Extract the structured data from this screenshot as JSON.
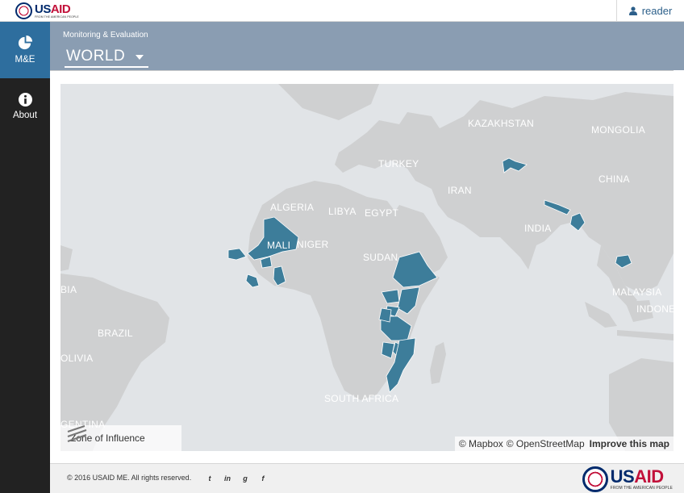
{
  "topbar": {
    "logo": {
      "word_us": "US",
      "word_aid": "AID",
      "tagline": "FROM THE AMERICAN PEOPLE"
    },
    "user_label": "reader",
    "user_icon": "user-icon"
  },
  "sidebar": {
    "items": [
      {
        "label": "M&E",
        "icon": "pie-chart-icon",
        "active": true
      },
      {
        "label": "About",
        "icon": "info-icon",
        "active": false
      }
    ]
  },
  "header": {
    "subtitle": "Monitoring & Evaluation",
    "region_select": "WORLD"
  },
  "map": {
    "labels": {
      "kazakhstan": "KAZAKHSTAN",
      "mongolia": "MONGOLIA",
      "turkey": "TURKEY",
      "china": "CHINA",
      "iran": "IRAN",
      "algeria": "ALGERIA",
      "libya": "LIBYA",
      "egypt": "EGYPT",
      "india": "INDIA",
      "mali": "MALI",
      "niger": "NIGER",
      "sudan": "SUDAN",
      "malaysia": "MALAYSIA",
      "bia": "BIA",
      "indonesia": "INDONE",
      "brazil": "BRAZIL",
      "bolivia": "OLIVIA",
      "south_africa": "SOUTH AFRICA",
      "argentina": "GENTINA"
    },
    "legend": {
      "label": "Zone of Influence",
      "icon": "hatch-swatch-icon"
    },
    "attribution": {
      "mapbox": "© Mapbox",
      "osm": "© OpenStreetMap",
      "improve": "Improve this map"
    },
    "colors": {
      "water": "#e1e4e7",
      "land": "#cfd0d1",
      "highlight": "#3d7d9a"
    }
  },
  "footer": {
    "copyright": "© 2016 USAID ME. All rights reserved.",
    "socials": [
      {
        "icon": "twitter-icon",
        "glyph": "t"
      },
      {
        "icon": "linkedin-icon",
        "glyph": "in"
      },
      {
        "icon": "github-icon",
        "glyph": "g"
      },
      {
        "icon": "facebook-icon",
        "glyph": "f"
      }
    ]
  }
}
